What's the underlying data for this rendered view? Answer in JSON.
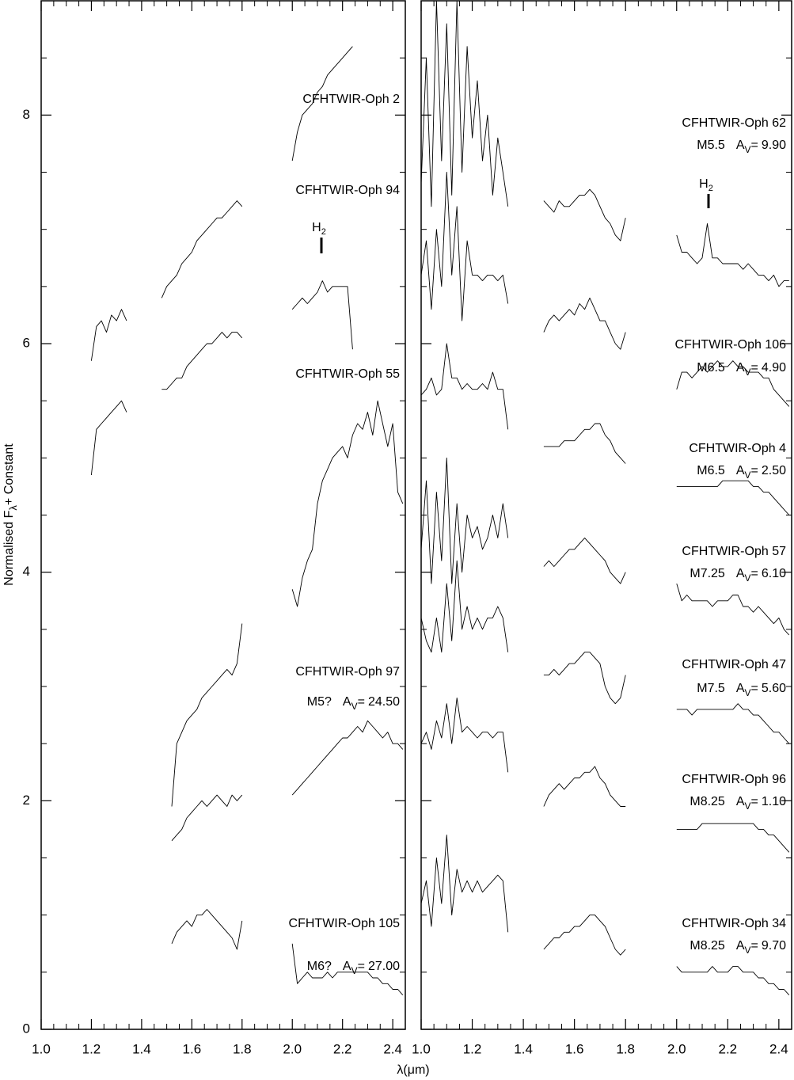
{
  "chart_data": [
    {
      "type": "line",
      "ylabel": "Normalised F",
      "ylabel_subscript": "λ",
      "ylabel_suffix": "+ Constant",
      "xlim": [
        1.0,
        2.45
      ],
      "ylim": [
        0,
        9
      ],
      "xticks": [
        {
          "value": 1.0,
          "label": "1.0"
        },
        1.2,
        1.4,
        1.6,
        1.8,
        {
          "value": 2.0,
          "label": "2.0"
        },
        2.2,
        2.4
      ],
      "yticks": [
        0,
        2,
        4,
        6,
        8
      ],
      "ytick_labels": true,
      "av_symbol": "A",
      "av_subscript": "V",
      "av_equals": "=",
      "annotations": [
        {
          "text": "H",
          "subscript": "2"
        }
      ],
      "x": [
        1.2,
        1.22,
        1.24,
        1.26,
        1.28,
        1.3,
        1.32,
        1.34,
        1.4,
        1.48,
        1.5,
        1.52,
        1.54,
        1.56,
        1.58,
        1.6,
        1.62,
        1.64,
        1.66,
        1.68,
        1.7,
        1.72,
        1.74,
        1.76,
        1.78,
        1.8,
        1.9,
        2.0,
        2.02,
        2.04,
        2.06,
        2.08,
        2.1,
        2.12,
        2.14,
        2.16,
        2.18,
        2.2,
        2.22,
        2.24,
        2.26,
        2.28,
        2.3,
        2.32,
        2.34,
        2.36,
        2.38,
        2.4,
        2.42,
        2.44
      ],
      "series": [
        {
          "name": "CFHTWIR-Oph 2",
          "color": "#000000",
          "values": [
            5.85,
            6.15,
            6.2,
            6.1,
            6.25,
            6.2,
            6.3,
            6.2,
            null,
            6.4,
            6.5,
            6.55,
            6.6,
            6.7,
            6.75,
            6.8,
            6.9,
            6.95,
            7.0,
            7.05,
            7.1,
            7.1,
            7.15,
            7.2,
            7.25,
            7.2,
            null,
            7.6,
            7.85,
            8.0,
            8.05,
            8.1,
            8.2,
            8.25,
            8.35,
            8.4,
            8.45,
            8.5,
            8.55,
            8.6,
            null,
            null,
            null,
            null,
            null,
            null,
            null,
            null,
            null,
            null
          ]
        },
        {
          "name": "CFHTWIR-Oph 94",
          "color": "#000000",
          "values": [
            4.85,
            5.25,
            5.3,
            5.35,
            5.4,
            5.45,
            5.5,
            5.4,
            null,
            5.6,
            5.6,
            5.65,
            5.7,
            5.7,
            5.8,
            5.85,
            5.9,
            5.95,
            6.0,
            6.0,
            6.05,
            6.1,
            6.05,
            6.1,
            6.1,
            6.05,
            null,
            6.3,
            6.35,
            6.4,
            6.35,
            6.4,
            6.45,
            6.55,
            6.45,
            6.5,
            6.5,
            6.5,
            6.5,
            5.95,
            null,
            null,
            null,
            null,
            null,
            null,
            null,
            null,
            null,
            null
          ]
        },
        {
          "name": "CFHTWIR-Oph 55",
          "color": "#000000",
          "values": [
            null,
            null,
            null,
            null,
            null,
            null,
            null,
            null,
            null,
            null,
            null,
            1.95,
            2.5,
            2.6,
            2.7,
            2.75,
            2.8,
            2.9,
            2.95,
            3.0,
            3.05,
            3.1,
            3.15,
            3.1,
            3.2,
            3.55,
            null,
            3.85,
            3.7,
            3.95,
            4.1,
            4.2,
            4.6,
            4.8,
            4.9,
            5.0,
            5.05,
            5.1,
            5.0,
            5.2,
            5.3,
            5.25,
            5.4,
            5.2,
            5.5,
            5.3,
            5.1,
            5.3,
            4.7,
            4.6
          ]
        },
        {
          "name": "CFHTWIR-Oph 97",
          "spt": "M5?",
          "av": 24.5,
          "av_label": "24.50",
          "color": "#000000",
          "values": [
            null,
            null,
            null,
            null,
            null,
            null,
            null,
            null,
            null,
            null,
            null,
            1.65,
            1.7,
            1.75,
            1.85,
            1.9,
            1.95,
            2.0,
            1.95,
            2.0,
            2.05,
            2.0,
            1.95,
            2.05,
            2.0,
            2.05,
            null,
            2.05,
            2.1,
            2.15,
            2.2,
            2.25,
            2.3,
            2.35,
            2.4,
            2.45,
            2.5,
            2.55,
            2.55,
            2.6,
            2.65,
            2.6,
            2.7,
            2.65,
            2.6,
            2.55,
            2.6,
            2.5,
            2.5,
            2.45
          ]
        },
        {
          "name": "CFHTWIR-Oph 105",
          "spt": "M6?",
          "av": 27,
          "av_label": "27.00",
          "color": "#000000",
          "values": [
            null,
            null,
            null,
            null,
            null,
            null,
            null,
            null,
            null,
            null,
            null,
            0.75,
            0.85,
            0.9,
            0.95,
            0.9,
            1.0,
            1.0,
            1.05,
            1.0,
            0.95,
            0.9,
            0.85,
            0.8,
            0.7,
            0.95,
            null,
            0.75,
            0.4,
            0.45,
            0.5,
            0.45,
            0.45,
            0.45,
            0.5,
            0.45,
            0.5,
            0.5,
            0.5,
            0.5,
            0.5,
            0.5,
            0.5,
            0.45,
            0.45,
            0.4,
            0.4,
            0.35,
            0.35,
            0.3
          ]
        }
      ]
    },
    {
      "type": "line",
      "xlabel": "λ(μm)",
      "xlim": [
        1.0,
        2.45
      ],
      "ylim": [
        0,
        9
      ],
      "xticks": [
        {
          "value": 1.0,
          "label": "1.0"
        },
        1.2,
        1.4,
        1.6,
        1.8,
        {
          "value": 2.0,
          "label": "2.0"
        },
        2.2,
        2.4
      ],
      "yticks": [
        0,
        2,
        4,
        6,
        8
      ],
      "ytick_labels": false,
      "av_symbol": "A",
      "av_subscript": "V",
      "av_equals": "=",
      "annotations": [
        {
          "text": "H",
          "subscript": "2"
        }
      ],
      "x": [
        1.0,
        1.02,
        1.04,
        1.06,
        1.08,
        1.1,
        1.12,
        1.14,
        1.16,
        1.18,
        1.2,
        1.22,
        1.24,
        1.26,
        1.28,
        1.3,
        1.32,
        1.34,
        1.4,
        1.48,
        1.5,
        1.52,
        1.54,
        1.56,
        1.58,
        1.6,
        1.62,
        1.64,
        1.66,
        1.68,
        1.7,
        1.72,
        1.74,
        1.76,
        1.78,
        1.8,
        1.9,
        2.0,
        2.02,
        2.04,
        2.06,
        2.08,
        2.1,
        2.12,
        2.14,
        2.16,
        2.18,
        2.2,
        2.22,
        2.24,
        2.26,
        2.28,
        2.3,
        2.32,
        2.34,
        2.36,
        2.38,
        2.4,
        2.42,
        2.44
      ],
      "series": [
        {
          "name": "CFHTWIR-Oph 62",
          "spt": "M5.5",
          "av": 9.9,
          "av_label": "9.90",
          "color": "#000000",
          "values": [
            7.4,
            8.5,
            7.2,
            9.0,
            7.6,
            8.8,
            7.3,
            9.0,
            7.5,
            8.6,
            7.8,
            8.3,
            7.6,
            8.0,
            7.3,
            7.8,
            7.5,
            7.2,
            null,
            7.25,
            7.2,
            7.15,
            7.25,
            7.2,
            7.2,
            7.25,
            7.3,
            7.3,
            7.35,
            7.3,
            7.2,
            7.1,
            7.05,
            6.95,
            6.9,
            7.1,
            null,
            6.95,
            6.8,
            6.8,
            6.75,
            6.7,
            6.75,
            7.05,
            6.75,
            6.75,
            6.7,
            6.7,
            6.7,
            6.7,
            6.65,
            6.7,
            6.65,
            6.6,
            6.6,
            6.55,
            6.6,
            6.5,
            6.55,
            6.55
          ]
        },
        {
          "name": "CFHTWIR-Oph 106",
          "spt": "M6.5",
          "av": 4.9,
          "av_label": "4.90",
          "color": "#000000",
          "values": [
            6.6,
            6.9,
            6.3,
            7.0,
            6.5,
            7.5,
            6.6,
            7.2,
            6.2,
            6.9,
            6.6,
            6.6,
            6.55,
            6.6,
            6.6,
            6.55,
            6.6,
            6.35,
            null,
            6.1,
            6.2,
            6.25,
            6.2,
            6.25,
            6.3,
            6.25,
            6.35,
            6.3,
            6.4,
            6.3,
            6.2,
            6.2,
            6.1,
            6.0,
            5.95,
            6.1,
            null,
            5.6,
            5.75,
            5.75,
            5.7,
            5.75,
            5.8,
            5.75,
            5.8,
            5.85,
            5.8,
            5.8,
            5.85,
            5.8,
            5.8,
            5.75,
            5.75,
            5.75,
            5.7,
            5.7,
            5.6,
            5.55,
            5.5,
            5.45
          ]
        },
        {
          "name": "CFHTWIR-Oph 4",
          "spt": "M6.5",
          "av": 2.5,
          "av_label": "2.50",
          "color": "#000000",
          "values": [
            5.55,
            5.6,
            5.7,
            5.55,
            5.6,
            6.0,
            5.7,
            5.7,
            5.6,
            5.65,
            5.6,
            5.6,
            5.65,
            5.6,
            5.75,
            5.6,
            5.6,
            5.25,
            null,
            5.1,
            5.1,
            5.1,
            5.1,
            5.15,
            5.15,
            5.15,
            5.2,
            5.25,
            5.25,
            5.3,
            5.3,
            5.2,
            5.15,
            5.05,
            5.0,
            4.95,
            null,
            4.75,
            4.75,
            4.75,
            4.75,
            4.75,
            4.75,
            4.75,
            4.75,
            4.75,
            4.8,
            4.8,
            4.8,
            4.8,
            4.8,
            4.8,
            4.75,
            4.75,
            4.7,
            4.7,
            4.65,
            4.6,
            4.55,
            4.5
          ]
        },
        {
          "name": "CFHTWIR-Oph 57",
          "spt": "M7.25",
          "av": 6.1,
          "av_label": "6.10",
          "color": "#000000",
          "values": [
            4.2,
            4.8,
            3.9,
            4.7,
            4.1,
            5.0,
            3.9,
            4.6,
            4.0,
            4.5,
            4.3,
            4.4,
            4.2,
            4.3,
            4.5,
            4.3,
            4.6,
            4.3,
            null,
            4.05,
            4.1,
            4.05,
            4.1,
            4.15,
            4.2,
            4.2,
            4.25,
            4.3,
            4.25,
            4.2,
            4.15,
            4.1,
            4.0,
            3.95,
            3.9,
            4.0,
            null,
            3.9,
            3.75,
            3.8,
            3.75,
            3.75,
            3.75,
            3.75,
            3.7,
            3.75,
            3.75,
            3.75,
            3.8,
            3.8,
            3.7,
            3.7,
            3.65,
            3.7,
            3.65,
            3.6,
            3.55,
            3.6,
            3.5,
            3.45
          ]
        },
        {
          "name": "CFHTWIR-Oph 47",
          "spt": "M7.5",
          "av": 5.6,
          "av_label": "5.60",
          "color": "#000000",
          "values": [
            3.6,
            3.4,
            3.3,
            3.6,
            3.3,
            3.9,
            3.4,
            4.1,
            3.5,
            3.7,
            3.5,
            3.6,
            3.5,
            3.6,
            3.6,
            3.7,
            3.6,
            3.3,
            null,
            3.1,
            3.1,
            3.15,
            3.1,
            3.15,
            3.2,
            3.2,
            3.25,
            3.3,
            3.3,
            3.25,
            3.2,
            3.0,
            2.9,
            2.85,
            2.9,
            3.1,
            null,
            2.8,
            2.8,
            2.8,
            2.75,
            2.8,
            2.8,
            2.8,
            2.8,
            2.8,
            2.8,
            2.8,
            2.8,
            2.85,
            2.8,
            2.8,
            2.75,
            2.75,
            2.7,
            2.65,
            2.6,
            2.6,
            2.55,
            2.5
          ]
        },
        {
          "name": "CFHTWIR-Oph 96",
          "spt": "M8.25",
          "av": 1.1,
          "av_label": "1.10",
          "color": "#000000",
          "values": [
            2.5,
            2.6,
            2.45,
            2.7,
            2.55,
            2.85,
            2.5,
            2.9,
            2.6,
            2.65,
            2.6,
            2.55,
            2.6,
            2.6,
            2.55,
            2.6,
            2.6,
            2.25,
            null,
            1.95,
            2.05,
            2.1,
            2.15,
            2.1,
            2.15,
            2.2,
            2.2,
            2.25,
            2.25,
            2.3,
            2.2,
            2.15,
            2.05,
            2.0,
            1.95,
            1.95,
            null,
            1.75,
            1.75,
            1.75,
            1.75,
            1.75,
            1.8,
            1.8,
            1.8,
            1.8,
            1.8,
            1.8,
            1.8,
            1.8,
            1.8,
            1.8,
            1.8,
            1.75,
            1.75,
            1.7,
            1.7,
            1.65,
            1.6,
            1.55
          ]
        },
        {
          "name": "CFHTWIR-Oph 34",
          "spt": "M8.25",
          "av": 9.7,
          "av_label": "9.70",
          "color": "#000000",
          "values": [
            1.1,
            1.3,
            0.9,
            1.5,
            1.1,
            1.7,
            1.0,
            1.4,
            1.2,
            1.3,
            1.2,
            1.3,
            1.2,
            1.25,
            1.3,
            1.35,
            1.3,
            0.85,
            null,
            0.7,
            0.75,
            0.8,
            0.8,
            0.85,
            0.85,
            0.9,
            0.9,
            0.95,
            1.0,
            1.0,
            0.95,
            0.9,
            0.8,
            0.7,
            0.65,
            0.7,
            null,
            0.55,
            0.5,
            0.5,
            0.5,
            0.5,
            0.5,
            0.5,
            0.55,
            0.5,
            0.5,
            0.5,
            0.55,
            0.55,
            0.5,
            0.5,
            0.5,
            0.45,
            0.45,
            0.4,
            0.4,
            0.35,
            0.35,
            0.3
          ]
        }
      ]
    }
  ]
}
